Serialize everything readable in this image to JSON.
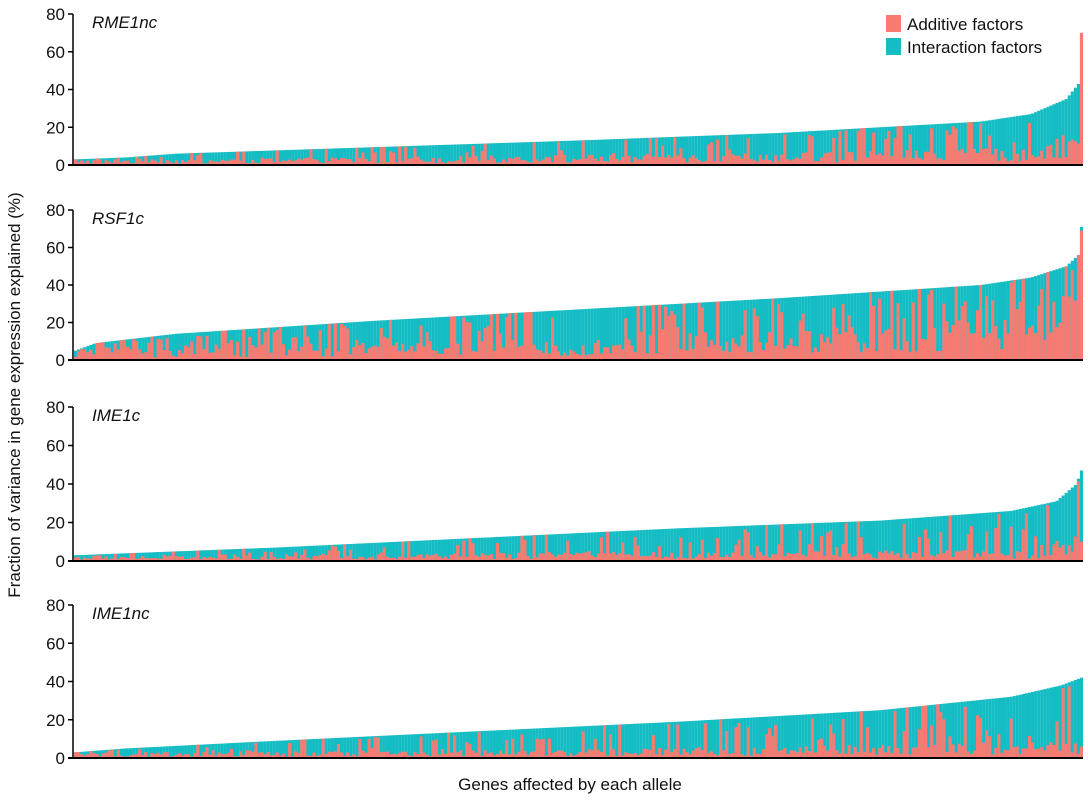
{
  "colors": {
    "additive": "#f87a70",
    "interaction": "#14bcc3",
    "axis": "#000000",
    "text": "#111111"
  },
  "figure": {
    "ylabel": "Fraction of variance in gene expression explained (%)",
    "xlabel": "Genes affected by each allele",
    "legend": {
      "additive_label": "Additive factors",
      "interaction_label": "Interaction factors",
      "position": "top-right"
    }
  },
  "chart_data": [
    {
      "type": "bar",
      "title": "RME1nc",
      "ylim": [
        0,
        80
      ],
      "yticks": [
        "0",
        "20",
        "40",
        "60",
        "80"
      ],
      "n_genes": 330,
      "series": [
        {
          "name": "Interaction factors",
          "knots": [
            [
              0,
              3
            ],
            [
              0.05,
              4
            ],
            [
              0.1,
              6
            ],
            [
              0.3,
              9.5
            ],
            [
              0.5,
              13
            ],
            [
              0.7,
              17
            ],
            [
              0.9,
              23
            ],
            [
              0.95,
              27
            ],
            [
              0.985,
              35
            ],
            [
              0.997,
              43
            ],
            [
              1,
              70
            ]
          ]
        },
        {
          "name": "Additive factors",
          "knots": [
            [
              0,
              2
            ],
            [
              0.6,
              4
            ],
            [
              0.93,
              6
            ],
            [
              0.997,
              12
            ],
            [
              1,
              75
            ]
          ],
          "spike_fraction": 0.25
        }
      ]
    },
    {
      "type": "bar",
      "title": "RSF1c",
      "ylim": [
        0,
        80
      ],
      "yticks": [
        "0",
        "20",
        "40",
        "60",
        "80"
      ],
      "n_genes": 330,
      "series": [
        {
          "name": "Interaction factors",
          "knots": [
            [
              0,
              5
            ],
            [
              0.02,
              9
            ],
            [
              0.1,
              14
            ],
            [
              0.3,
              21
            ],
            [
              0.5,
              27
            ],
            [
              0.7,
              33
            ],
            [
              0.9,
              40
            ],
            [
              0.95,
              44
            ],
            [
              0.985,
              50
            ],
            [
              0.997,
              56
            ],
            [
              1,
              71
            ]
          ]
        },
        {
          "name": "Additive factors",
          "knots": [
            [
              0,
              4
            ],
            [
              0.5,
              8
            ],
            [
              0.9,
              14
            ],
            [
              0.97,
              22
            ],
            [
              1,
              69
            ]
          ],
          "spike_fraction": 0.45
        }
      ]
    },
    {
      "type": "bar",
      "title": "IME1c",
      "ylim": [
        0,
        80
      ],
      "yticks": [
        "0",
        "20",
        "40",
        "60",
        "80"
      ],
      "n_genes": 330,
      "series": [
        {
          "name": "Interaction factors",
          "knots": [
            [
              0,
              3
            ],
            [
              0.05,
              4
            ],
            [
              0.2,
              7
            ],
            [
              0.4,
              12
            ],
            [
              0.6,
              17
            ],
            [
              0.8,
              21
            ],
            [
              0.93,
              26
            ],
            [
              0.975,
              31
            ],
            [
              0.995,
              40
            ],
            [
              1,
              47
            ]
          ]
        },
        {
          "name": "Additive factors",
          "knots": [
            [
              0,
              2
            ],
            [
              0.5,
              3
            ],
            [
              0.95,
              4
            ],
            [
              1,
              10
            ]
          ],
          "spike_fraction": 0.25
        }
      ]
    },
    {
      "type": "bar",
      "title": "IME1nc",
      "ylim": [
        0,
        80
      ],
      "yticks": [
        "0",
        "20",
        "40",
        "60",
        "80"
      ],
      "n_genes": 330,
      "series": [
        {
          "name": "Interaction factors",
          "knots": [
            [
              0,
              3
            ],
            [
              0.05,
              5
            ],
            [
              0.2,
              9
            ],
            [
              0.4,
              14
            ],
            [
              0.6,
              19
            ],
            [
              0.8,
              25
            ],
            [
              0.93,
              32
            ],
            [
              0.98,
              38
            ],
            [
              1,
              42
            ]
          ]
        },
        {
          "name": "Additive factors",
          "knots": [
            [
              0,
              2
            ],
            [
              0.5,
              3
            ],
            [
              1,
              6
            ]
          ],
          "spike_fraction": 0.3
        }
      ]
    }
  ]
}
